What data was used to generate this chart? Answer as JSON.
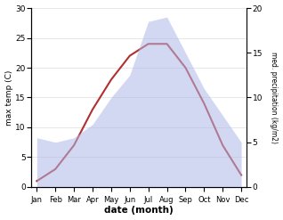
{
  "months": [
    "Jan",
    "Feb",
    "Mar",
    "Apr",
    "May",
    "Jun",
    "Jul",
    "Aug",
    "Sep",
    "Oct",
    "Nov",
    "Dec"
  ],
  "temperature": [
    1,
    3,
    7,
    13,
    18,
    22,
    24,
    24,
    20,
    14,
    7,
    2
  ],
  "precipitation": [
    5.5,
    5.0,
    5.5,
    7.0,
    10.0,
    12.5,
    18.5,
    19.0,
    15.0,
    11.0,
    8.0,
    5.0
  ],
  "temp_color": "#b03030",
  "precip_color": "#b0b8e8",
  "ylabel_left": "max temp (C)",
  "ylabel_right": "med. precipitation (kg/m2)",
  "xlabel": "date (month)",
  "ylim_left": [
    0,
    30
  ],
  "ylim_right": [
    0,
    20
  ],
  "yticks_left": [
    0,
    5,
    10,
    15,
    20,
    25,
    30
  ],
  "yticks_right": [
    0,
    5,
    10,
    15,
    20
  ],
  "background_color": "#ffffff"
}
